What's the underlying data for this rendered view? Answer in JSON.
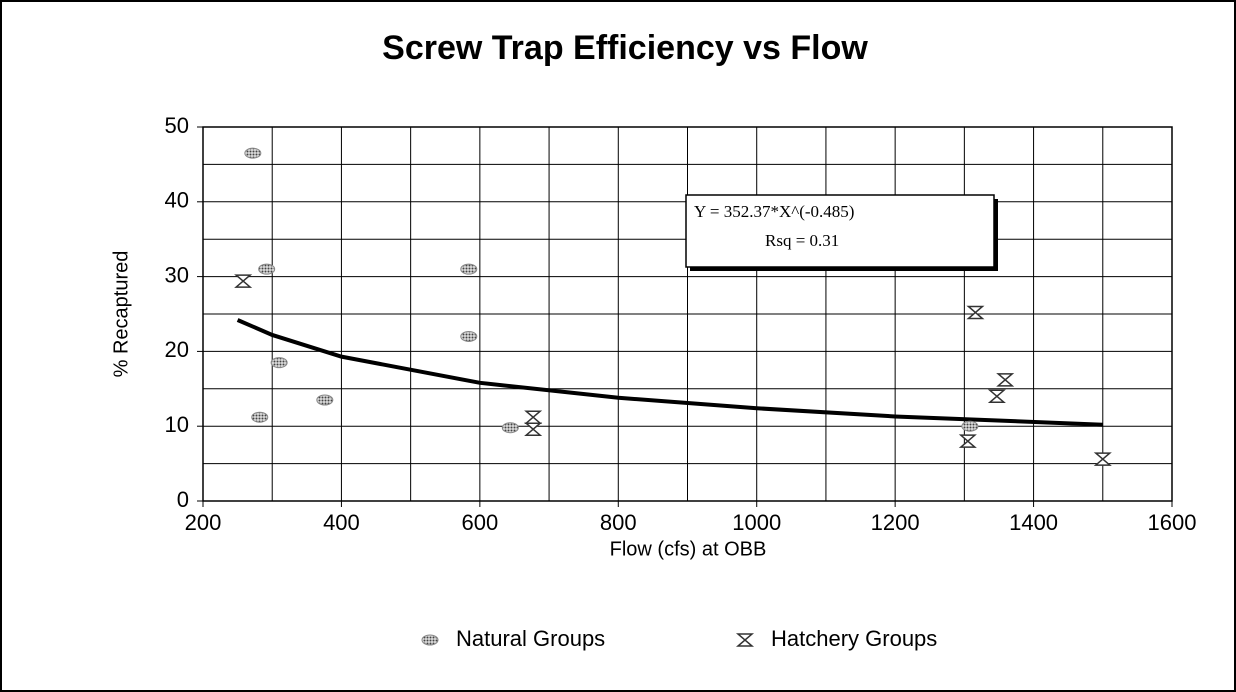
{
  "chart_data": {
    "type": "scatter",
    "title": "Screw Trap Efficiency vs Flow",
    "xlabel": "Flow (cfs) at OBB",
    "ylabel": "% Recaptured",
    "xlim": [
      200,
      1600
    ],
    "ylim": [
      0,
      50
    ],
    "xticks": [
      200,
      400,
      600,
      800,
      1000,
      1200,
      1400,
      1600
    ],
    "yticks": [
      0,
      10,
      20,
      30,
      40,
      50
    ],
    "xminor": [
      300,
      500,
      700,
      900,
      1100,
      1300,
      1500
    ],
    "yminor": [
      5,
      15,
      25,
      35,
      45
    ],
    "grid": true,
    "legend": "bottom",
    "series": [
      {
        "name": "Natural Groups",
        "color": "#888888",
        "marker": "circle",
        "x": [
          272,
          292,
          310,
          282,
          376,
          584,
          584,
          644,
          1308
        ],
        "values": [
          46.5,
          31,
          18.5,
          11.2,
          13.5,
          31,
          22,
          9.8,
          10
        ]
      },
      {
        "name": "Hatchery Groups",
        "color": "#333333",
        "marker": "hourglass",
        "x": [
          258,
          677,
          677,
          1316,
          1359,
          1347,
          1305,
          1500
        ],
        "values": [
          29.4,
          11.2,
          9.6,
          25.2,
          16.2,
          14,
          8,
          5.6
        ]
      }
    ],
    "fit": {
      "color": "#000000",
      "x": [
        250,
        300,
        400,
        600,
        800,
        1000,
        1200,
        1500
      ],
      "values": [
        24.2,
        22.2,
        19.3,
        15.8,
        13.8,
        12.4,
        11.3,
        10.2
      ]
    },
    "annotation": [
      "Y = 352.37*X^(-0.485)",
      "Rsq = 0.31"
    ]
  }
}
